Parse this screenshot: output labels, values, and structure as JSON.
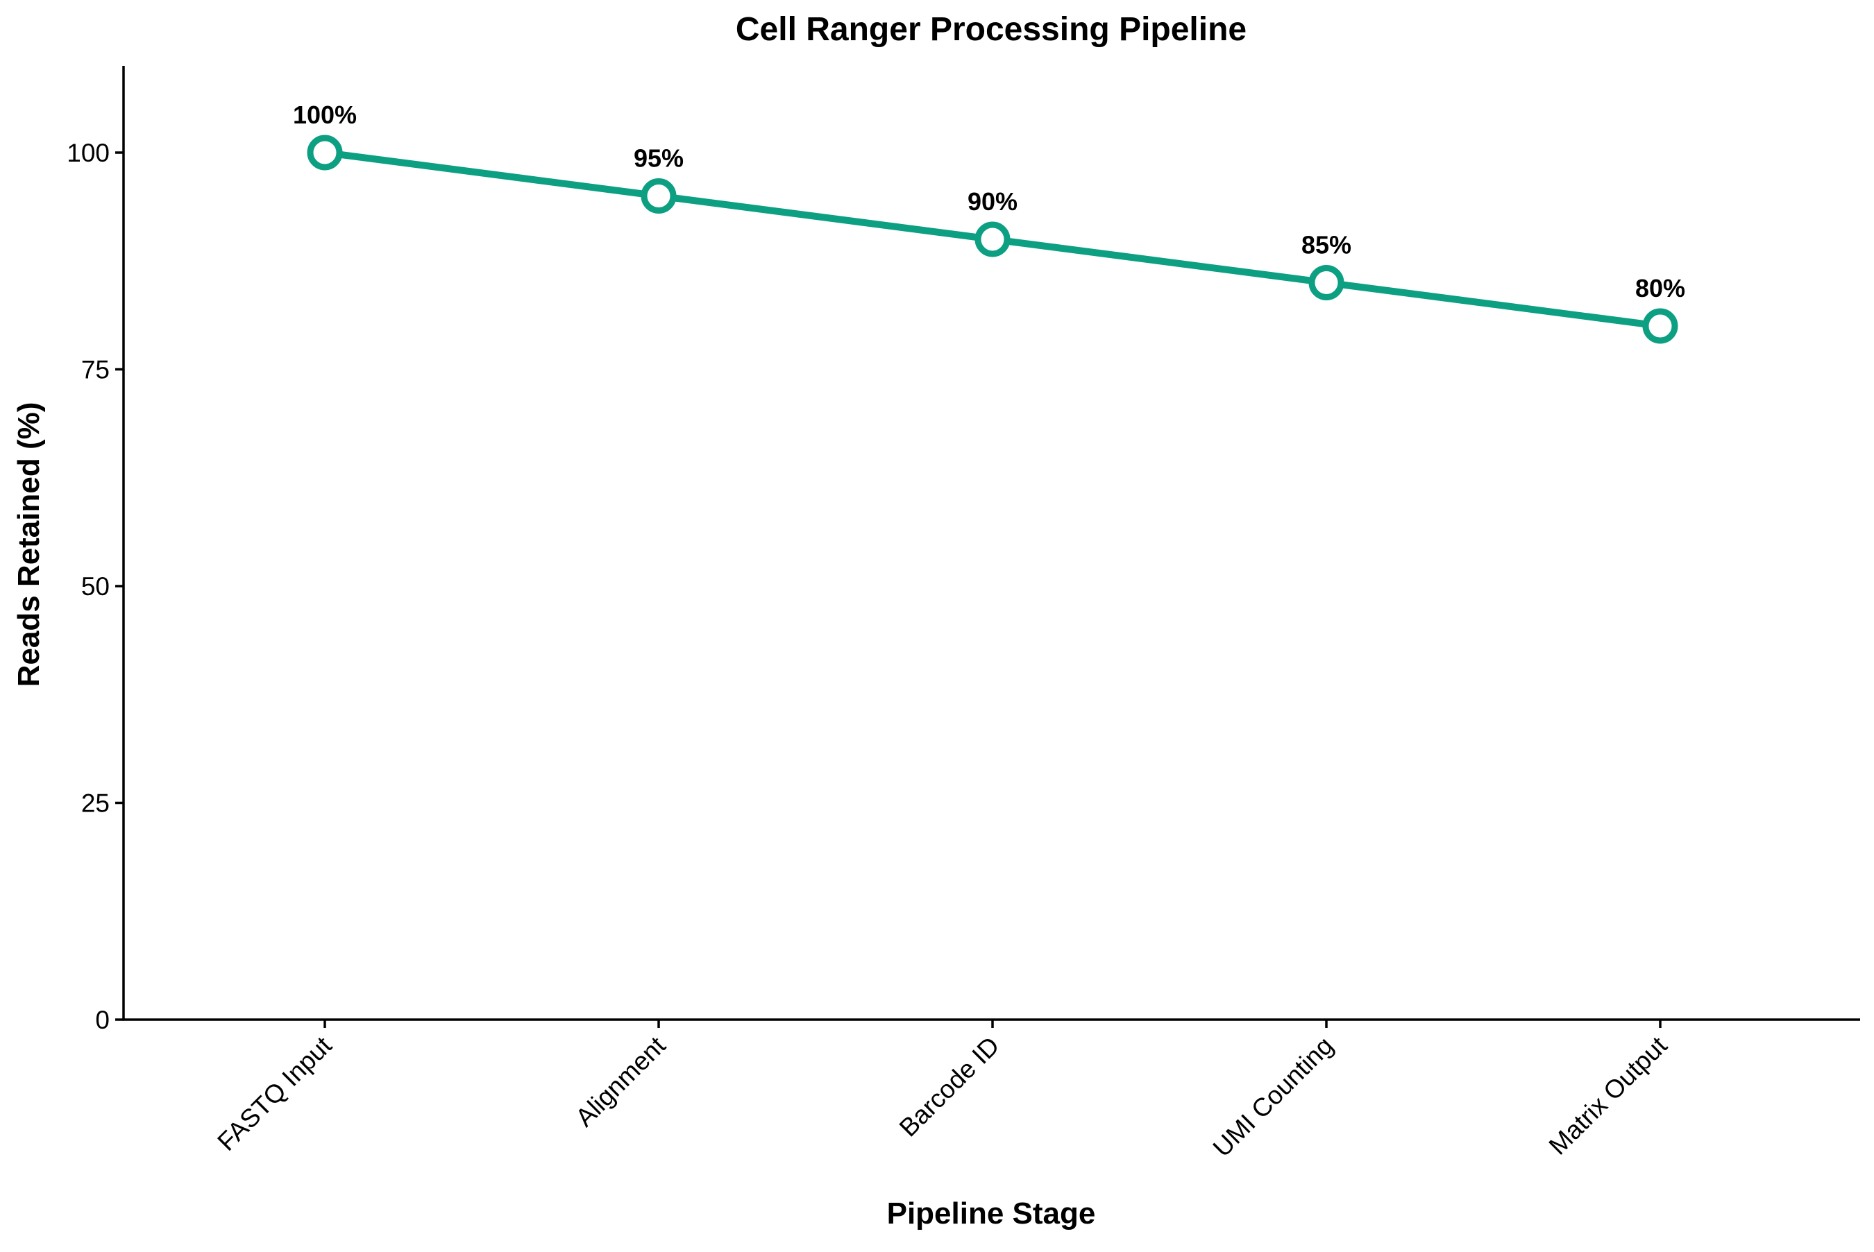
{
  "chart_data": {
    "type": "line",
    "title": "Cell Ranger Processing Pipeline",
    "xlabel": "Pipeline Stage",
    "ylabel": "Reads Retained (%)",
    "categories": [
      "FASTQ Input",
      "Alignment",
      "Barcode ID",
      "UMI Counting",
      "Matrix Output"
    ],
    "series": [
      {
        "values": [
          100,
          95,
          90,
          85,
          80
        ],
        "data_labels": [
          "100%",
          "95%",
          "90%",
          "85%",
          "80%"
        ]
      }
    ],
    "ylim": [
      0,
      110
    ],
    "yticks": [
      0,
      25,
      50,
      75,
      100
    ],
    "ytick_labels": [
      "0",
      "25",
      "50",
      "75",
      "100"
    ],
    "grid": false,
    "legend": "none",
    "x_tick_rotation": "45 degrees",
    "colors": {
      "line": "#0c9f82",
      "marker_fill": "#ffffff",
      "axis": "#000000"
    }
  }
}
